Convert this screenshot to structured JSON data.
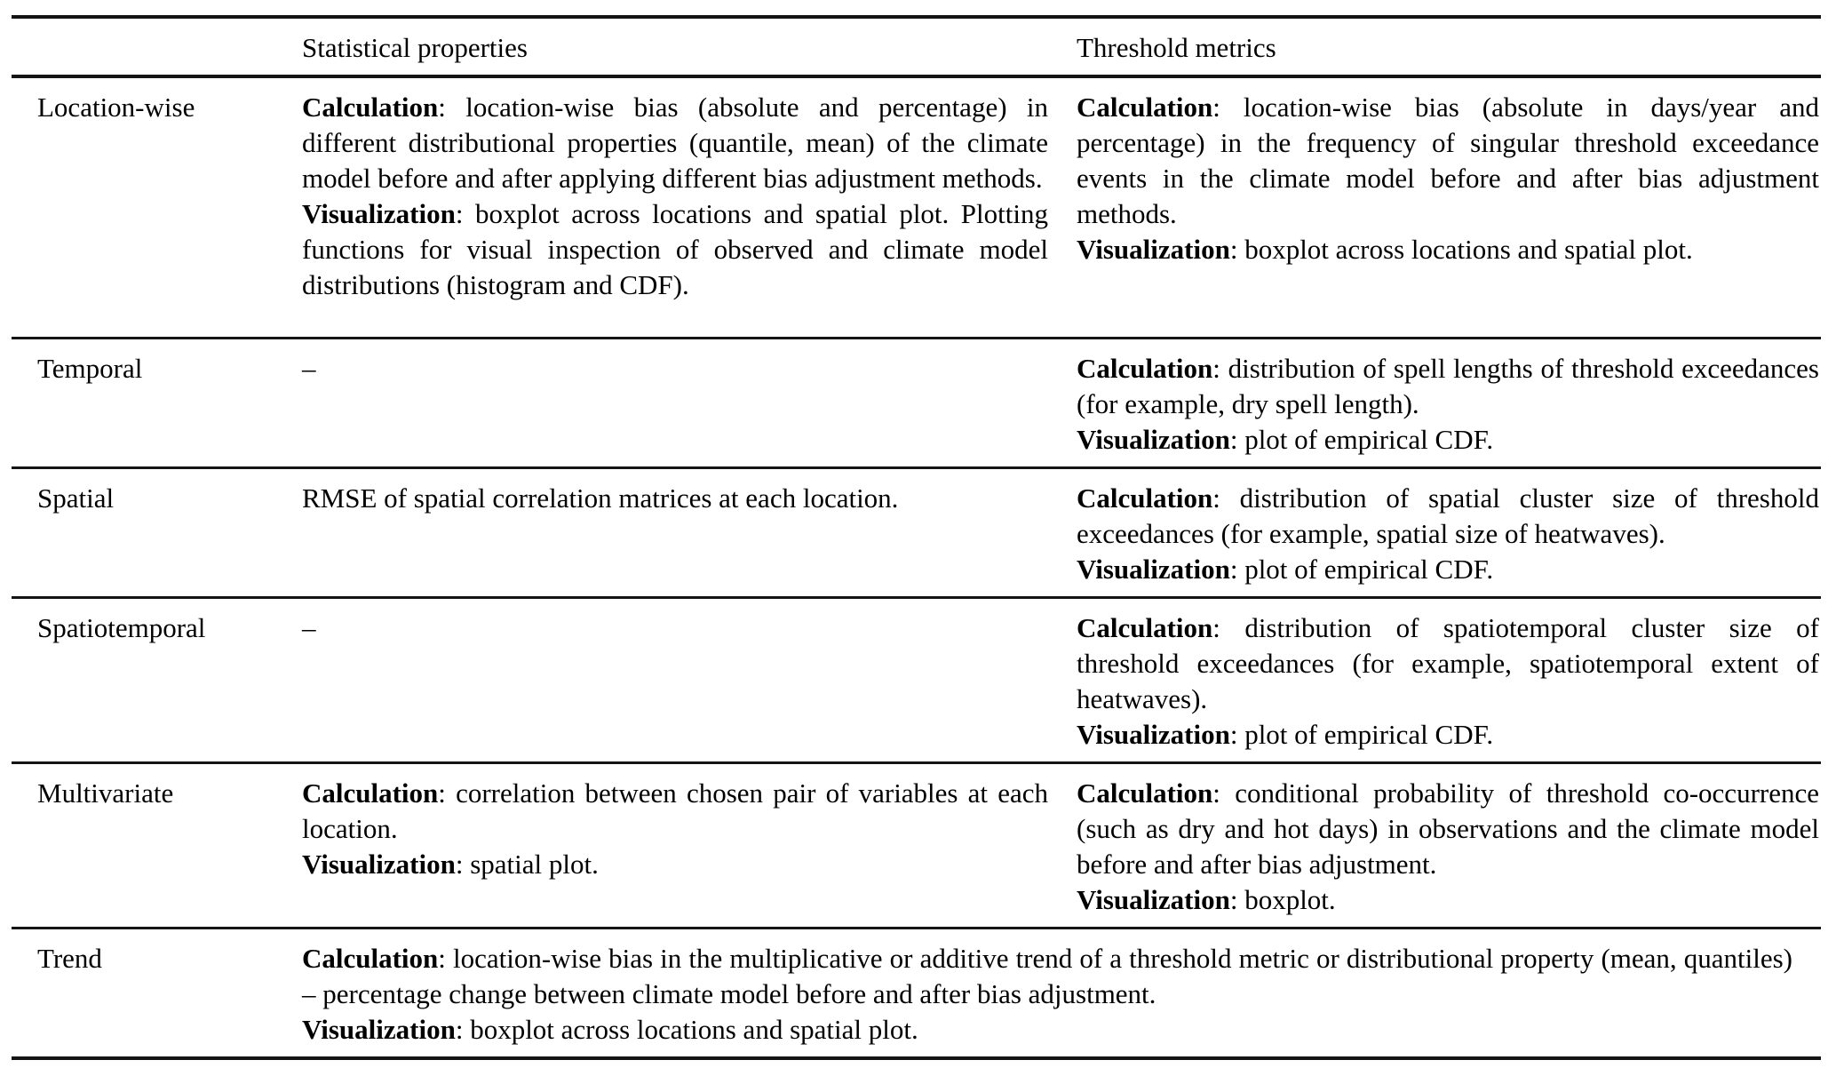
{
  "table": {
    "header": {
      "label": "",
      "stat": "Statistical properties",
      "threshold": "Threshold metrics"
    },
    "empty_marker": "–",
    "rows": [
      {
        "label": "Location-wise",
        "stat": {
          "paragraphs": [
            {
              "bold": "Calculation",
              "text": ": location-wise bias (absolute and percentage) in different distributional properties (quantile, mean) of the climate model before and after applying different bias adjustment methods."
            },
            {
              "bold": "Visualization",
              "text": ": boxplot across locations and spatial plot. Plotting functions for visual inspection of observed and climate model distributions (histogram and CDF)."
            }
          ]
        },
        "threshold": {
          "paragraphs": [
            {
              "bold": "Calculation",
              "text": ": location-wise bias (absolute in days/year and percentage) in the frequency of singular threshold exceedance events in the climate model before and after bias adjustment methods."
            },
            {
              "bold": "Visualization",
              "text": ": boxplot across locations and spatial plot."
            }
          ]
        }
      },
      {
        "label": "Temporal",
        "stat": {
          "paragraphs": [
            {
              "bold": null,
              "text": "–"
            }
          ]
        },
        "threshold": {
          "paragraphs": [
            {
              "bold": "Calculation",
              "text": ": distribution of spell lengths of threshold exceedances (for example, dry spell length)."
            },
            {
              "bold": "Visualization",
              "text": ": plot of empirical CDF."
            }
          ]
        }
      },
      {
        "label": "Spatial",
        "stat": {
          "paragraphs": [
            {
              "bold": null,
              "text": "RMSE of spatial correlation matrices at each location."
            }
          ]
        },
        "threshold": {
          "paragraphs": [
            {
              "bold": "Calculation",
              "text": ": distribution of spatial cluster size of threshold exceedances (for example, spatial size of heatwaves)."
            },
            {
              "bold": "Visualization",
              "text": ": plot of empirical CDF."
            }
          ]
        }
      },
      {
        "label": "Spatiotemporal",
        "stat": {
          "paragraphs": [
            {
              "bold": null,
              "text": "–"
            }
          ]
        },
        "threshold": {
          "paragraphs": [
            {
              "bold": "Calculation",
              "text": ": distribution of spatiotemporal cluster size of threshold exceedances (for example, spatiotemporal extent of heatwaves)."
            },
            {
              "bold": "Visualization",
              "text": ": plot of empirical CDF."
            }
          ]
        }
      },
      {
        "label": "Multivariate",
        "stat": {
          "paragraphs": [
            {
              "bold": "Calculation",
              "text": ": correlation between chosen pair of variables at each location."
            },
            {
              "bold": "Visualization",
              "text": ": spatial plot."
            }
          ]
        },
        "threshold": {
          "paragraphs": [
            {
              "bold": "Calculation",
              "text": ": conditional probability of threshold co-occurrence (such as dry and hot days) in observations and the climate model before and after bias adjustment."
            },
            {
              "bold": "Visualization",
              "text": ": boxplot."
            }
          ]
        }
      },
      {
        "label": "Trend",
        "stat": {
          "span": true,
          "paragraphs": [
            {
              "bold": "Calculation",
              "text": ": location-wise bias in the multiplicative or additive trend of a threshold metric or distributional property (mean, quantiles) – percentage change between climate model before and after bias adjustment."
            },
            {
              "bold": "Visualization",
              "text": ": boxplot across locations and spatial plot."
            }
          ]
        },
        "threshold": null
      }
    ]
  }
}
